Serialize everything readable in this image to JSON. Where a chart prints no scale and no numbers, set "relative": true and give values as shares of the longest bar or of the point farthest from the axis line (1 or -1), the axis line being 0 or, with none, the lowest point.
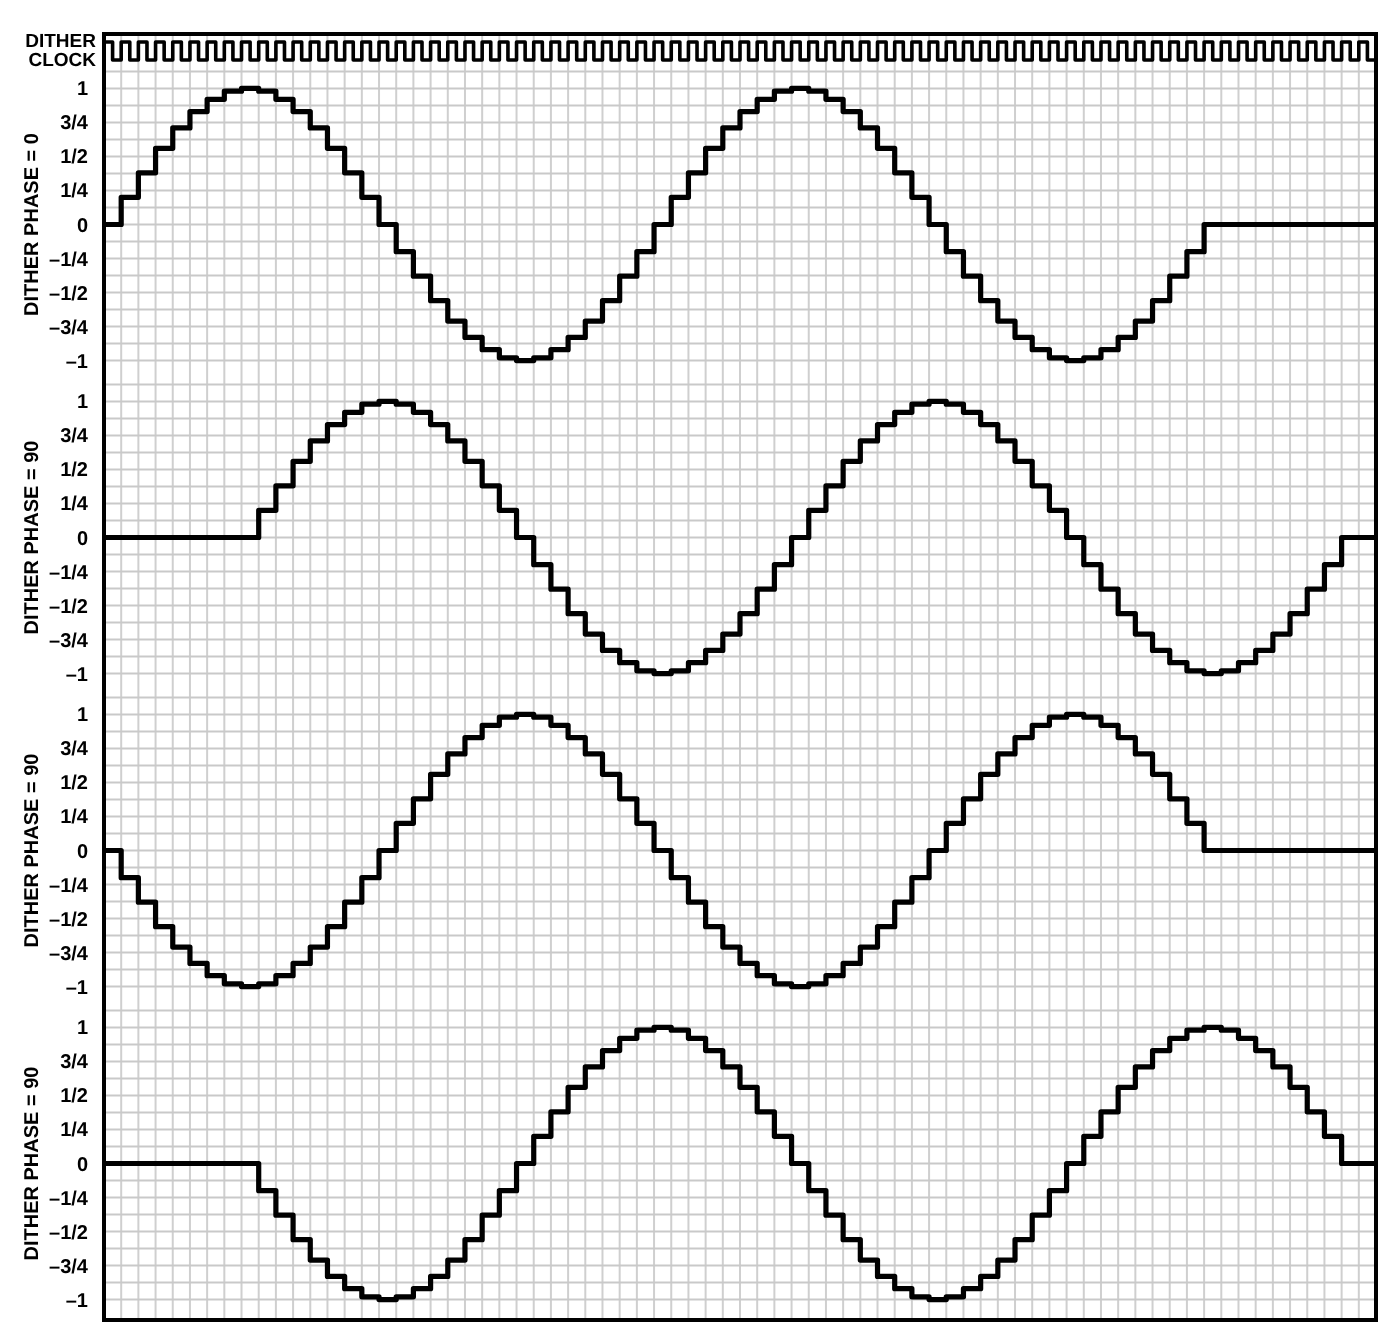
{
  "chart_data": [
    {
      "type": "step",
      "relative": true,
      "ylabel": "DITHER CLOCK",
      "grid": "x",
      "tick_labels": false,
      "categories": [
        null,
        null,
        null,
        null,
        null,
        null,
        null,
        null,
        null,
        null,
        null,
        null,
        null,
        null,
        null,
        null,
        null,
        null,
        null,
        null,
        null,
        null,
        null,
        null,
        null,
        null,
        null,
        null,
        null,
        null,
        null,
        null,
        null,
        null,
        null,
        null,
        null,
        null,
        null,
        null,
        null,
        null,
        null,
        null,
        null,
        null,
        null,
        null,
        null,
        null,
        null,
        null,
        null,
        null,
        null,
        null,
        null,
        null,
        null,
        null,
        null,
        null,
        null,
        null,
        null,
        null,
        null,
        null,
        null,
        null,
        null,
        null,
        null,
        null,
        null,
        null,
        null,
        null,
        null,
        null,
        null,
        null,
        null,
        null,
        null,
        null,
        null,
        null,
        null,
        null,
        null,
        null,
        null,
        null,
        null,
        null,
        null,
        null,
        null,
        null,
        null,
        null,
        null,
        null,
        null,
        null,
        null,
        null,
        null,
        null,
        null,
        null,
        null,
        null,
        null,
        null,
        null,
        null,
        null,
        null,
        null,
        null,
        null,
        null,
        null,
        null,
        null,
        null,
        null,
        null,
        null,
        null,
        null,
        null,
        null,
        null,
        null,
        null,
        null,
        null,
        null,
        null,
        null,
        null,
        null,
        null,
        null,
        null,
        null
      ],
      "series": [
        {
          "color": "#000000",
          "values": [
            1,
            0,
            1,
            0,
            1,
            0,
            1,
            0,
            1,
            0,
            1,
            0,
            1,
            0,
            1,
            0,
            1,
            0,
            1,
            0,
            1,
            0,
            1,
            0,
            1,
            0,
            1,
            0,
            1,
            0,
            1,
            0,
            1,
            0,
            1,
            0,
            1,
            0,
            1,
            0,
            1,
            0,
            1,
            0,
            1,
            0,
            1,
            0,
            1,
            0,
            1,
            0,
            1,
            0,
            1,
            0,
            1,
            0,
            1,
            0,
            1,
            0,
            1,
            0,
            1,
            0,
            1,
            0,
            1,
            0,
            1,
            0,
            1,
            0,
            1,
            0,
            1,
            0,
            1,
            0,
            1,
            0,
            1,
            0,
            1,
            0,
            1,
            0,
            1,
            0,
            1,
            0,
            1,
            0,
            1,
            0,
            1,
            0,
            1,
            0,
            1,
            0,
            1,
            0,
            1,
            0,
            1,
            0,
            1,
            0,
            1,
            0,
            1,
            0,
            1,
            0,
            1,
            0,
            1,
            0,
            1,
            0,
            1,
            0,
            1,
            0,
            1,
            0,
            1,
            0,
            1,
            0,
            1,
            0,
            1,
            0,
            1,
            0,
            1,
            0,
            1,
            0,
            1,
            0,
            1,
            0,
            1,
            0,
            1
          ]
        }
      ]
    },
    {
      "type": "step",
      "ylabel": "DITHER PHASE = 0",
      "grid": true,
      "tick_labels": "y",
      "ylim": [
        -1.15,
        1.15
      ],
      "yticks": [
        {
          "value": 1.125,
          "label": null
        },
        {
          "value": 1,
          "label": "1"
        },
        {
          "value": 0.875,
          "label": null
        },
        {
          "value": 0.75,
          "label": "3/4"
        },
        {
          "value": 0.625,
          "label": null
        },
        {
          "value": 0.5,
          "label": "1/2"
        },
        {
          "value": 0.375,
          "label": null
        },
        {
          "value": 0.25,
          "label": "1/4"
        },
        {
          "value": 0.125,
          "label": null
        },
        {
          "value": 0,
          "label": "0"
        },
        {
          "value": -0.125,
          "label": null
        },
        {
          "value": -0.25,
          "label": "–1/4"
        },
        {
          "value": -0.375,
          "label": null
        },
        {
          "value": -0.5,
          "label": "–1/2"
        },
        {
          "value": -0.625,
          "label": null
        },
        {
          "value": -0.75,
          "label": "–3/4"
        },
        {
          "value": -0.875,
          "label": null
        },
        {
          "value": -1,
          "label": "–1"
        }
      ],
      "categories": [
        null,
        null,
        null,
        null,
        null,
        null,
        null,
        null,
        null,
        null,
        null,
        null,
        null,
        null,
        null,
        null,
        null,
        null,
        null,
        null,
        null,
        null,
        null,
        null,
        null,
        null,
        null,
        null,
        null,
        null,
        null,
        null,
        null,
        null,
        null,
        null,
        null,
        null,
        null,
        null,
        null,
        null,
        null,
        null,
        null,
        null,
        null,
        null,
        null,
        null,
        null,
        null,
        null,
        null,
        null,
        null,
        null,
        null,
        null,
        null,
        null,
        null,
        null,
        null,
        null,
        null,
        null,
        null,
        null,
        null,
        null,
        null,
        null,
        null,
        null
      ],
      "series": [
        {
          "color": "#000000",
          "values": [
            0,
            0.2,
            0.38,
            0.56,
            0.71,
            0.83,
            0.92,
            0.98,
            1,
            0.98,
            0.92,
            0.83,
            0.71,
            0.56,
            0.38,
            0.2,
            0,
            -0.2,
            -0.38,
            -0.56,
            -0.71,
            -0.83,
            -0.92,
            -0.98,
            -1,
            -0.98,
            -0.92,
            -0.83,
            -0.71,
            -0.56,
            -0.38,
            -0.2,
            0,
            0.2,
            0.38,
            0.56,
            0.71,
            0.83,
            0.92,
            0.98,
            1,
            0.98,
            0.92,
            0.83,
            0.71,
            0.56,
            0.38,
            0.2,
            0,
            -0.2,
            -0.38,
            -0.56,
            -0.71,
            -0.83,
            -0.92,
            -0.98,
            -1,
            -0.98,
            -0.92,
            -0.83,
            -0.71,
            -0.56,
            -0.38,
            -0.2,
            0,
            0,
            0,
            0,
            0,
            0,
            0,
            0,
            0,
            0,
            0
          ]
        }
      ]
    },
    {
      "type": "step",
      "ylabel": "DITHER PHASE = 90",
      "grid": true,
      "tick_labels": "y",
      "ylim": [
        -1.15,
        1.15
      ],
      "yticks": [
        {
          "value": 1.125,
          "label": null
        },
        {
          "value": 1,
          "label": "1"
        },
        {
          "value": 0.875,
          "label": null
        },
        {
          "value": 0.75,
          "label": "3/4"
        },
        {
          "value": 0.625,
          "label": null
        },
        {
          "value": 0.5,
          "label": "1/2"
        },
        {
          "value": 0.375,
          "label": null
        },
        {
          "value": 0.25,
          "label": "1/4"
        },
        {
          "value": 0.125,
          "label": null
        },
        {
          "value": 0,
          "label": "0"
        },
        {
          "value": -0.125,
          "label": null
        },
        {
          "value": -0.25,
          "label": "–1/4"
        },
        {
          "value": -0.375,
          "label": null
        },
        {
          "value": -0.5,
          "label": "–1/2"
        },
        {
          "value": -0.625,
          "label": null
        },
        {
          "value": -0.75,
          "label": "–3/4"
        },
        {
          "value": -0.875,
          "label": null
        },
        {
          "value": -1,
          "label": "–1"
        }
      ],
      "categories": [
        null,
        null,
        null,
        null,
        null,
        null,
        null,
        null,
        null,
        null,
        null,
        null,
        null,
        null,
        null,
        null,
        null,
        null,
        null,
        null,
        null,
        null,
        null,
        null,
        null,
        null,
        null,
        null,
        null,
        null,
        null,
        null,
        null,
        null,
        null,
        null,
        null,
        null,
        null,
        null,
        null,
        null,
        null,
        null,
        null,
        null,
        null,
        null,
        null,
        null,
        null,
        null,
        null,
        null,
        null,
        null,
        null,
        null,
        null,
        null,
        null,
        null,
        null,
        null,
        null,
        null,
        null,
        null,
        null,
        null,
        null,
        null,
        null,
        null,
        null
      ],
      "series": [
        {
          "color": "#000000",
          "values": [
            0,
            0,
            0,
            0,
            0,
            0,
            0,
            0,
            0,
            0.2,
            0.38,
            0.56,
            0.71,
            0.83,
            0.92,
            0.98,
            1,
            0.98,
            0.92,
            0.83,
            0.71,
            0.56,
            0.38,
            0.2,
            0,
            -0.2,
            -0.38,
            -0.56,
            -0.71,
            -0.83,
            -0.92,
            -0.98,
            -1,
            -0.98,
            -0.92,
            -0.83,
            -0.71,
            -0.56,
            -0.38,
            -0.2,
            0,
            0.2,
            0.38,
            0.56,
            0.71,
            0.83,
            0.92,
            0.98,
            1,
            0.98,
            0.92,
            0.83,
            0.71,
            0.56,
            0.38,
            0.2,
            0,
            -0.2,
            -0.38,
            -0.56,
            -0.71,
            -0.83,
            -0.92,
            -0.98,
            -1,
            -0.98,
            -0.92,
            -0.83,
            -0.71,
            -0.56,
            -0.38,
            -0.2,
            0,
            0,
            0
          ]
        }
      ]
    },
    {
      "type": "step",
      "ylabel": "DITHER PHASE = 90",
      "grid": true,
      "tick_labels": "y",
      "ylim": [
        -1.15,
        1.15
      ],
      "yticks": [
        {
          "value": 1.125,
          "label": null
        },
        {
          "value": 1,
          "label": "1"
        },
        {
          "value": 0.875,
          "label": null
        },
        {
          "value": 0.75,
          "label": "3/4"
        },
        {
          "value": 0.625,
          "label": null
        },
        {
          "value": 0.5,
          "label": "1/2"
        },
        {
          "value": 0.375,
          "label": null
        },
        {
          "value": 0.25,
          "label": "1/4"
        },
        {
          "value": 0.125,
          "label": null
        },
        {
          "value": 0,
          "label": "0"
        },
        {
          "value": -0.125,
          "label": null
        },
        {
          "value": -0.25,
          "label": "–1/4"
        },
        {
          "value": -0.375,
          "label": null
        },
        {
          "value": -0.5,
          "label": "–1/2"
        },
        {
          "value": -0.625,
          "label": null
        },
        {
          "value": -0.75,
          "label": "–3/4"
        },
        {
          "value": -0.875,
          "label": null
        },
        {
          "value": -1,
          "label": "–1"
        }
      ],
      "categories": [
        null,
        null,
        null,
        null,
        null,
        null,
        null,
        null,
        null,
        null,
        null,
        null,
        null,
        null,
        null,
        null,
        null,
        null,
        null,
        null,
        null,
        null,
        null,
        null,
        null,
        null,
        null,
        null,
        null,
        null,
        null,
        null,
        null,
        null,
        null,
        null,
        null,
        null,
        null,
        null,
        null,
        null,
        null,
        null,
        null,
        null,
        null,
        null,
        null,
        null,
        null,
        null,
        null,
        null,
        null,
        null,
        null,
        null,
        null,
        null,
        null,
        null,
        null,
        null,
        null,
        null,
        null,
        null,
        null,
        null,
        null,
        null,
        null,
        null,
        null
      ],
      "series": [
        {
          "color": "#000000",
          "values": [
            0,
            -0.2,
            -0.38,
            -0.56,
            -0.71,
            -0.83,
            -0.92,
            -0.98,
            -1,
            -0.98,
            -0.92,
            -0.83,
            -0.71,
            -0.56,
            -0.38,
            -0.2,
            0,
            0.2,
            0.38,
            0.56,
            0.71,
            0.83,
            0.92,
            0.98,
            1,
            0.98,
            0.92,
            0.83,
            0.71,
            0.56,
            0.38,
            0.2,
            0,
            -0.2,
            -0.38,
            -0.56,
            -0.71,
            -0.83,
            -0.92,
            -0.98,
            -1,
            -0.98,
            -0.92,
            -0.83,
            -0.71,
            -0.56,
            -0.38,
            -0.2,
            0,
            0.2,
            0.38,
            0.56,
            0.71,
            0.83,
            0.92,
            0.98,
            1,
            0.98,
            0.92,
            0.83,
            0.71,
            0.56,
            0.38,
            0.2,
            0,
            0,
            0,
            0,
            0,
            0,
            0,
            0,
            0,
            0,
            0
          ]
        }
      ]
    },
    {
      "type": "step",
      "ylabel": "DITHER PHASE = 90",
      "grid": true,
      "tick_labels": "y",
      "ylim": [
        -1.15,
        1.15
      ],
      "yticks": [
        {
          "value": 1.125,
          "label": null
        },
        {
          "value": 1,
          "label": "1"
        },
        {
          "value": 0.875,
          "label": null
        },
        {
          "value": 0.75,
          "label": "3/4"
        },
        {
          "value": 0.625,
          "label": null
        },
        {
          "value": 0.5,
          "label": "1/2"
        },
        {
          "value": 0.375,
          "label": null
        },
        {
          "value": 0.25,
          "label": "1/4"
        },
        {
          "value": 0.125,
          "label": null
        },
        {
          "value": 0,
          "label": "0"
        },
        {
          "value": -0.125,
          "label": null
        },
        {
          "value": -0.25,
          "label": "–1/4"
        },
        {
          "value": -0.375,
          "label": null
        },
        {
          "value": -0.5,
          "label": "–1/2"
        },
        {
          "value": -0.625,
          "label": null
        },
        {
          "value": -0.75,
          "label": "–3/4"
        },
        {
          "value": -0.875,
          "label": null
        },
        {
          "value": -1,
          "label": "–1"
        }
      ],
      "categories": [
        null,
        null,
        null,
        null,
        null,
        null,
        null,
        null,
        null,
        null,
        null,
        null,
        null,
        null,
        null,
        null,
        null,
        null,
        null,
        null,
        null,
        null,
        null,
        null,
        null,
        null,
        null,
        null,
        null,
        null,
        null,
        null,
        null,
        null,
        null,
        null,
        null,
        null,
        null,
        null,
        null,
        null,
        null,
        null,
        null,
        null,
        null,
        null,
        null,
        null,
        null,
        null,
        null,
        null,
        null,
        null,
        null,
        null,
        null,
        null,
        null,
        null,
        null,
        null,
        null,
        null,
        null,
        null,
        null,
        null,
        null,
        null,
        null,
        null,
        null
      ],
      "series": [
        {
          "color": "#000000",
          "values": [
            0,
            0,
            0,
            0,
            0,
            0,
            0,
            0,
            0,
            -0.2,
            -0.38,
            -0.56,
            -0.71,
            -0.83,
            -0.92,
            -0.98,
            -1,
            -0.98,
            -0.92,
            -0.83,
            -0.71,
            -0.56,
            -0.38,
            -0.2,
            0,
            0.2,
            0.38,
            0.56,
            0.71,
            0.83,
            0.92,
            0.98,
            1,
            0.98,
            0.92,
            0.83,
            0.71,
            0.56,
            0.38,
            0.2,
            0,
            -0.2,
            -0.38,
            -0.56,
            -0.71,
            -0.83,
            -0.92,
            -0.98,
            -1,
            -0.98,
            -0.92,
            -0.83,
            -0.71,
            -0.56,
            -0.38,
            -0.2,
            0,
            0.2,
            0.38,
            0.56,
            0.71,
            0.83,
            0.92,
            0.98,
            1,
            0.98,
            0.92,
            0.83,
            0.71,
            0.56,
            0.38,
            0.2,
            0,
            0,
            0
          ]
        }
      ]
    }
  ]
}
